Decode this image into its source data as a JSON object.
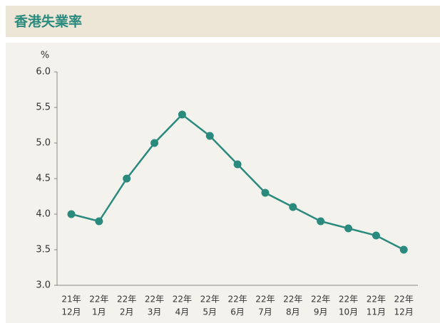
{
  "chart_data": {
    "type": "line",
    "title": "香港失業率",
    "y_label": "%",
    "categories": [
      [
        "21年",
        "12月"
      ],
      [
        "22年",
        "1月"
      ],
      [
        "22年",
        "2月"
      ],
      [
        "22年",
        "3月"
      ],
      [
        "22年",
        "4月"
      ],
      [
        "22年",
        "5月"
      ],
      [
        "22年",
        "6月"
      ],
      [
        "22年",
        "7月"
      ],
      [
        "22年",
        "8月"
      ],
      [
        "22年",
        "9月"
      ],
      [
        "22年",
        "10月"
      ],
      [
        "22年",
        "11月"
      ],
      [
        "22年",
        "12月"
      ]
    ],
    "series": [
      {
        "name": "失業率",
        "color": "#2a8a7e",
        "values": [
          4.0,
          3.9,
          4.5,
          5.0,
          5.4,
          5.1,
          4.7,
          4.3,
          4.1,
          3.9,
          3.8,
          3.7,
          3.5
        ]
      }
    ],
    "ylim": [
      3,
      6
    ],
    "yticks": [
      {
        "value": 3,
        "label": "3.0"
      },
      3.5,
      {
        "value": 4,
        "label": "4.0"
      },
      4.5,
      {
        "value": 5,
        "label": "5.0"
      },
      5.5,
      {
        "value": 6,
        "label": "6.0"
      }
    ],
    "grid": false
  }
}
